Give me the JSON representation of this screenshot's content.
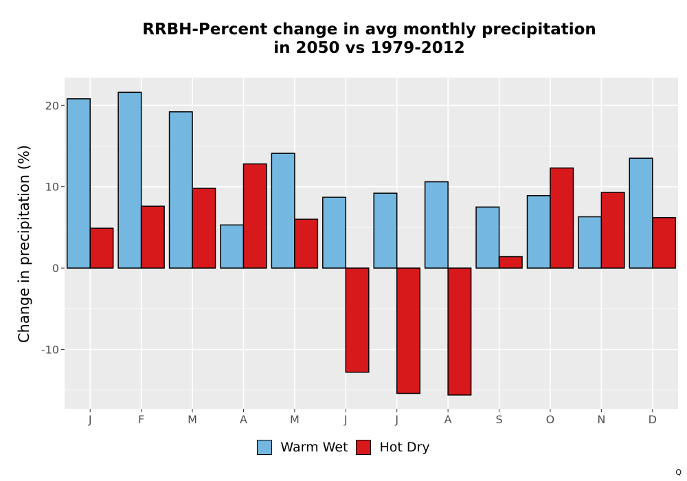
{
  "chart_data": {
    "type": "bar",
    "title_line1": "RRBH-Percent change in avg monthly precipitation",
    "title_line2": "in 2050 vs 1979-2012",
    "xlabel": "",
    "ylabel": "Change in precipitation (%)",
    "categories": [
      "J",
      "F",
      "M",
      "A",
      "M",
      "J",
      "J",
      "A",
      "S",
      "O",
      "N",
      "D"
    ],
    "series": [
      {
        "name": "Warm Wet",
        "color": "#74B7E1",
        "values": [
          20.8,
          21.6,
          19.2,
          5.3,
          14.1,
          8.7,
          9.2,
          10.6,
          7.5,
          8.9,
          6.3,
          13.5
        ]
      },
      {
        "name": "Hot Dry",
        "color": "#D7191C",
        "values": [
          4.9,
          7.6,
          9.8,
          12.8,
          6.0,
          -12.8,
          -15.4,
          -15.6,
          1.4,
          12.3,
          9.3,
          6.2
        ]
      }
    ],
    "yticks": [
      -10,
      0,
      10,
      20
    ],
    "ylim": [
      -17.3,
      23.4
    ],
    "grid": true,
    "legend_position": "bottom",
    "panel_background": "#EBEBEB",
    "grid_color": "#FFFFFF"
  },
  "corner_mark": "Q"
}
